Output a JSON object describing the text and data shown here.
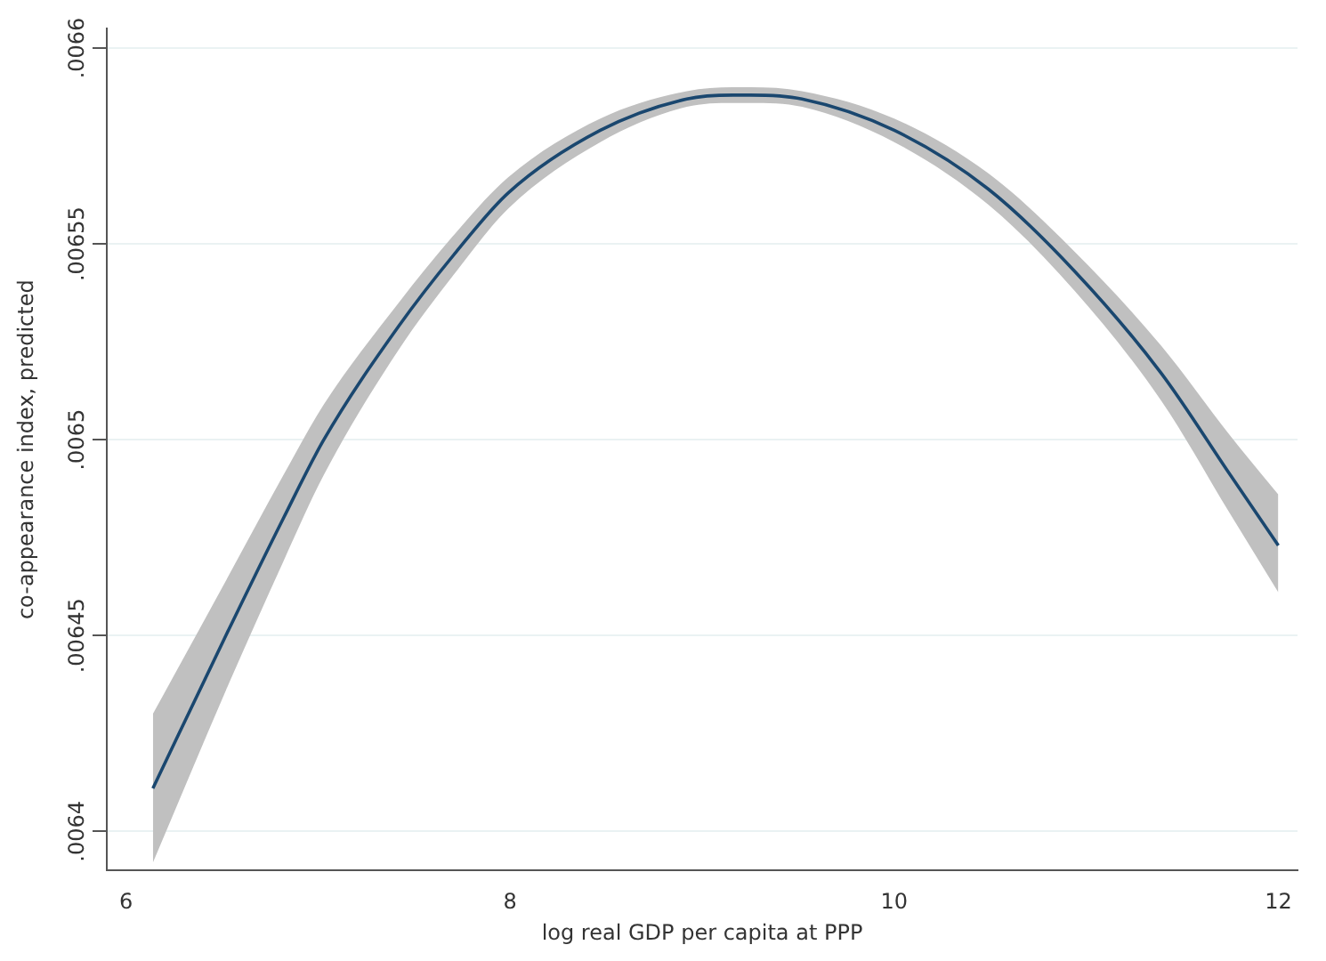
{
  "chart_data": {
    "type": "line",
    "xlabel": "log real GDP per capita at PPP",
    "ylabel": "co-appearance index, predicted",
    "xlim": [
      5.9,
      12.1
    ],
    "xticks": [
      6,
      8,
      10,
      12
    ],
    "ylim": [
      0.00639,
      0.006605
    ],
    "yticks": [
      {
        "value": 0.0064,
        "label": ".0064"
      },
      {
        "value": 0.00645,
        "label": ".00645"
      },
      {
        "value": 0.0065,
        "label": ".0065"
      },
      {
        "value": 0.00655,
        "label": ".00655"
      },
      {
        "value": 0.0066,
        "label": ".0066"
      }
    ],
    "grid": "y",
    "legend": false,
    "marker": "none",
    "line_style": "solid",
    "series": [
      {
        "color": "#1a476f",
        "x": [
          6.14,
          6.52,
          6.82,
          7.03,
          7.42,
          7.72,
          7.99,
          8.47,
          8.92,
          9.16,
          9.25,
          9.52,
          10.0,
          10.49,
          10.94,
          11.39,
          11.75,
          12.0
        ],
        "values": [
          0.006411,
          0.00645,
          0.00648,
          0.0065,
          0.006529,
          0.006548,
          0.006563,
          0.006579,
          0.006587,
          0.006588,
          0.006588,
          0.006587,
          0.006579,
          0.006564,
          0.006543,
          0.006517,
          0.006491,
          0.006473
        ],
        "lower": [
          0.006392,
          0.006436,
          0.006469,
          0.006491,
          0.006523,
          0.006543,
          0.006559,
          0.006576,
          0.006585,
          0.006586,
          0.006586,
          0.006585,
          0.006576,
          0.00656,
          0.006538,
          0.00651,
          0.006481,
          0.006461
        ],
        "upper": [
          0.00643,
          0.006464,
          0.006491,
          0.006509,
          0.006535,
          0.006553,
          0.006567,
          0.006582,
          0.006589,
          0.00659,
          0.00659,
          0.006589,
          0.006582,
          0.006568,
          0.006548,
          0.006524,
          0.006501,
          0.006486
        ]
      }
    ]
  }
}
